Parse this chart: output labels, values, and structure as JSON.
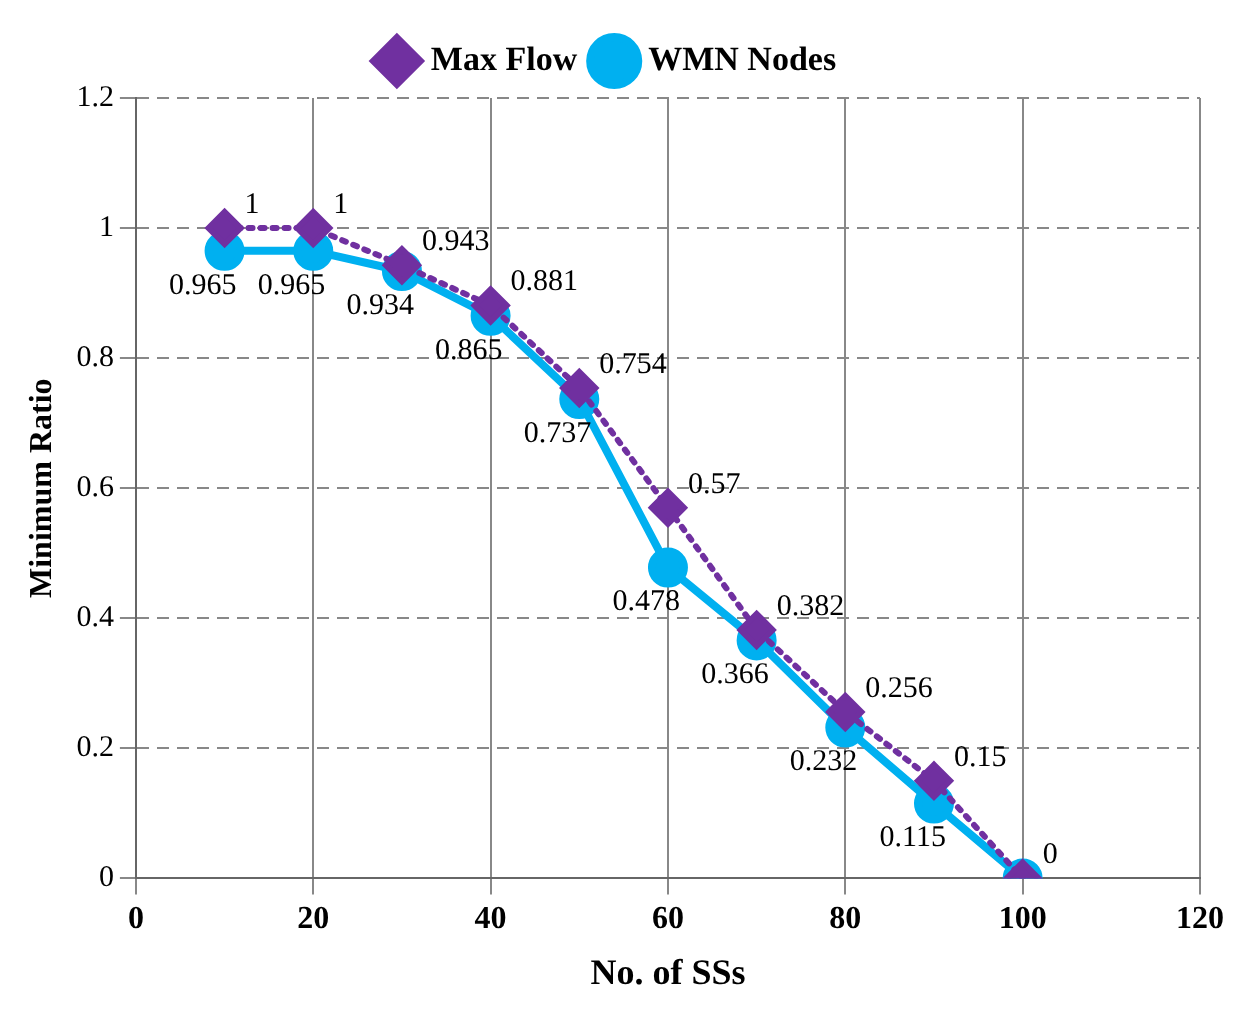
{
  "chart_data": {
    "type": "line",
    "xlabel": "No. of SSs",
    "ylabel": "Minimum Ratio",
    "xlim": [
      0,
      120
    ],
    "xticks": [
      0,
      20,
      40,
      60,
      80,
      100,
      120
    ],
    "ylim": [
      0,
      1.2
    ],
    "yticks": [
      0,
      0.2,
      0.4,
      0.6,
      0.8,
      1,
      1.2
    ],
    "x": [
      10,
      20,
      30,
      40,
      50,
      60,
      70,
      80,
      90,
      100
    ],
    "series": [
      {
        "name": "Max Flow",
        "color": "#7030a0",
        "marker": "diamond",
        "line_style": "dotted",
        "values": [
          1,
          1,
          0.943,
          0.881,
          0.754,
          0.57,
          0.382,
          0.256,
          0.15,
          0
        ],
        "value_labels": [
          "1",
          "1",
          "0.943",
          "0.881",
          "0.754",
          "0.57",
          "0.382",
          "0.256",
          "0.15",
          "0"
        ]
      },
      {
        "name": "WMN Nodes",
        "color": "#00b0f0",
        "marker": "circle",
        "line_style": "solid",
        "values": [
          0.965,
          0.965,
          0.934,
          0.865,
          0.737,
          0.478,
          0.366,
          0.232,
          0.115,
          0
        ],
        "value_labels": [
          "0.965",
          "0.965",
          "0.934",
          "0.865",
          "0.737",
          "0.478",
          "0.366",
          "0.232",
          "0.115",
          null
        ]
      }
    ],
    "grid": true,
    "legend": "top"
  }
}
